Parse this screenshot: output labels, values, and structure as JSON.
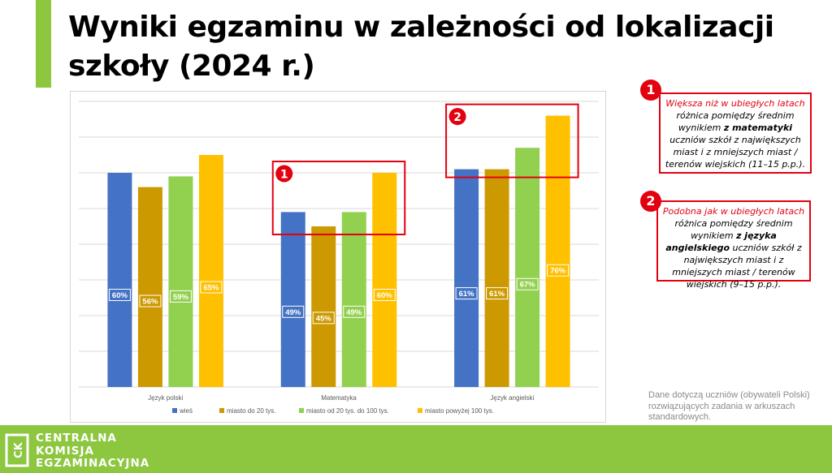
{
  "title": "Wyniki egzaminu w zależności od lokalizacji szkoły (2024 r.)",
  "chart_data": {
    "type": "bar",
    "categories": [
      "Język polski",
      "Matematyka",
      "Język angielski"
    ],
    "series": [
      {
        "name": "wieś",
        "color": "#4472c4",
        "values": [
          60,
          49,
          61
        ]
      },
      {
        "name": "miasto do 20 tys.",
        "color": "#cc9900",
        "values": [
          56,
          45,
          61
        ]
      },
      {
        "name": "miasto od 20 tys. do 100 tys.",
        "color": "#92d050",
        "values": [
          59,
          49,
          67
        ]
      },
      {
        "name": "miasto powyżej 100 tys.",
        "color": "#ffc000",
        "values": [
          65,
          60,
          76
        ]
      }
    ],
    "value_suffix": "%",
    "ylim": [
      0,
      80
    ],
    "grid": true,
    "legend": "bottom",
    "annotations": [
      {
        "badge": "1",
        "category": "Matematyka"
      },
      {
        "badge": "2",
        "category": "Język angielski"
      }
    ]
  },
  "callouts": [
    {
      "badge": "1",
      "highlight": "Większa niż w ubiegłych latach",
      "pre": "różnica pomiędzy średnim wynikiem ",
      "bold": "z matematyki",
      "post": " uczniów szkół z największych miast i z mniejszych miast / terenów wiejskich (11–15 p.p.)."
    },
    {
      "badge": "2",
      "highlight": "Podobna jak w ubiegłych latach",
      "pre": "różnica pomiędzy średnim wynikiem ",
      "bold": "z języka angielskiego",
      "post": " uczniów szkół z największych miast i z mniejszych miast / terenów wiejskich (9–15 p.p.)."
    }
  ],
  "note": "Dane dotyczą uczniów (obywateli Polski) rozwiązujących zadania w arkuszach standardowych.",
  "footer": {
    "logo_mark": "CK",
    "line1": "CENTRALNA",
    "line2": "KOMISJA",
    "line3": "EGZAMINACYJNA"
  }
}
